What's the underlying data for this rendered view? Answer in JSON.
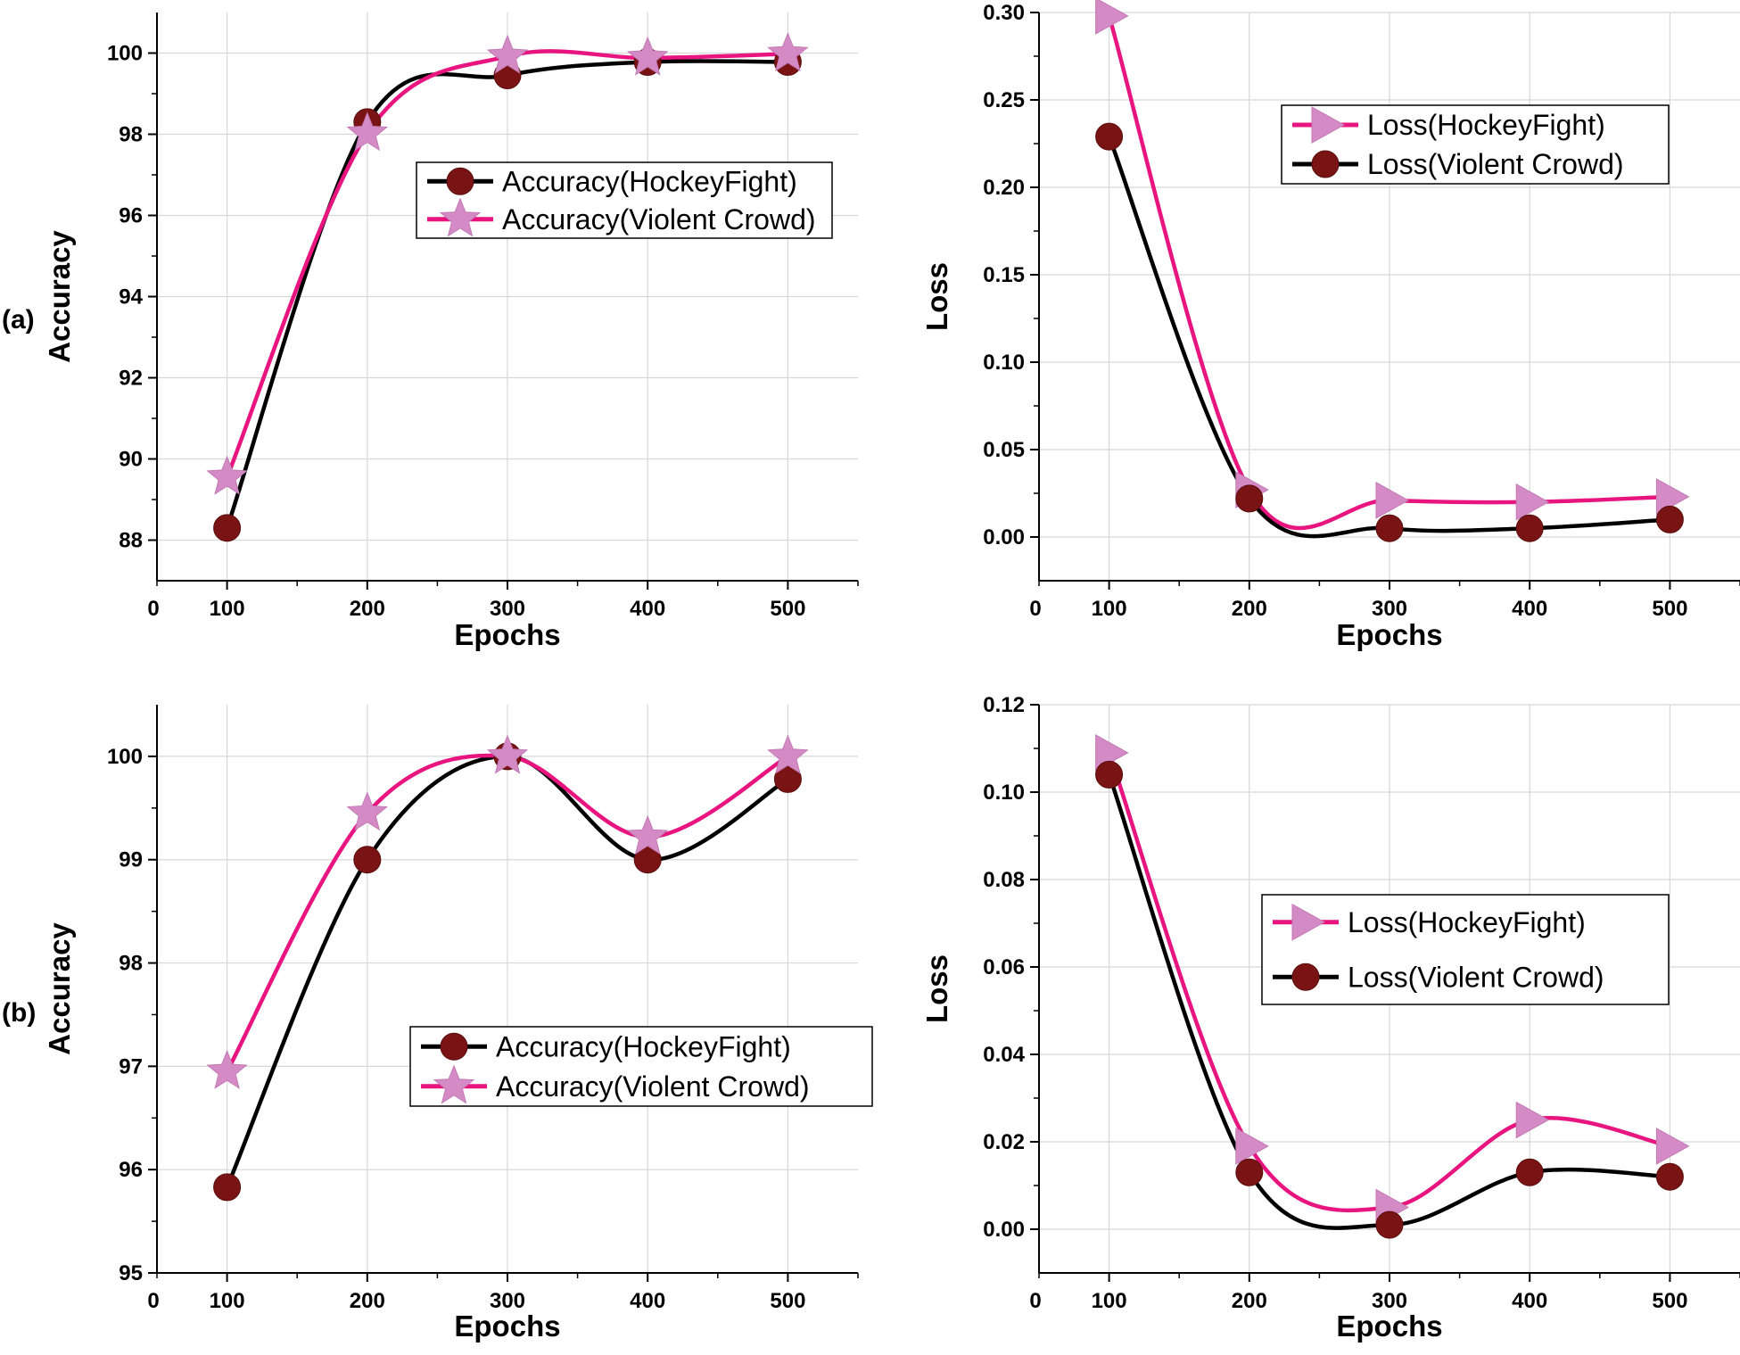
{
  "row_labels": [
    "(a)",
    "(b)"
  ],
  "colors": {
    "black_series": "#000000",
    "pink_series": "#e8147f",
    "marker_dark": "#7a1414",
    "marker_pink": "#d48ac4"
  },
  "chart_data": [
    {
      "id": "a-accuracy",
      "type": "line",
      "row": "(a)",
      "xlabel": "Epochs",
      "ylabel": "Accuracy",
      "x_ticks": [
        100,
        200,
        300,
        400,
        500
      ],
      "x_origin_label": "0",
      "xlim": [
        50,
        550
      ],
      "ylim": [
        87,
        101
      ],
      "y_ticks": [
        88,
        90,
        92,
        94,
        96,
        98,
        100
      ],
      "y_tick_labels": [
        "88",
        "90",
        "92",
        "94",
        "96",
        "98",
        "100"
      ],
      "legend_position": "upper-middle",
      "series": [
        {
          "name": "Accuracy(HockeyFight)",
          "color": "#000000",
          "marker": "circle",
          "x": [
            100,
            200,
            300,
            400,
            500
          ],
          "y": [
            88.3,
            98.3,
            99.45,
            99.78,
            99.78
          ]
        },
        {
          "name": "Accuracy(Violent Crowd)",
          "color": "#e8147f",
          "marker": "star",
          "x": [
            100,
            200,
            300,
            400,
            500
          ],
          "y": [
            89.55,
            98.02,
            99.92,
            99.88,
            99.98
          ]
        }
      ]
    },
    {
      "id": "a-loss",
      "type": "line",
      "row": "(a)",
      "xlabel": "Epochs",
      "ylabel": "Loss",
      "x_ticks": [
        100,
        200,
        300,
        400,
        500
      ],
      "x_origin_label": "0",
      "xlim": [
        50,
        550
      ],
      "ylim": [
        -0.025,
        0.3
      ],
      "y_ticks": [
        0.0,
        0.05,
        0.1,
        0.15,
        0.2,
        0.25,
        0.3
      ],
      "y_tick_labels": [
        "0.00",
        "0.05",
        "0.10",
        "0.15",
        "0.20",
        "0.25",
        "0.30"
      ],
      "legend_position": "top-right",
      "series": [
        {
          "name": "Loss(HockeyFight)",
          "color": "#e8147f",
          "marker": "triangle-right",
          "x": [
            100,
            200,
            300,
            400,
            500
          ],
          "y": [
            0.298,
            0.027,
            0.021,
            0.02,
            0.023
          ]
        },
        {
          "name": "Loss(Violent Crowd)",
          "color": "#000000",
          "marker": "circle",
          "x": [
            100,
            200,
            300,
            400,
            500
          ],
          "y": [
            0.229,
            0.022,
            0.005,
            0.005,
            0.01
          ]
        }
      ]
    },
    {
      "id": "b-accuracy",
      "type": "line",
      "row": "(b)",
      "xlabel": "Epochs",
      "ylabel": "Accuracy",
      "x_ticks": [
        100,
        200,
        300,
        400,
        500
      ],
      "x_origin_label": "0",
      "xlim": [
        50,
        550
      ],
      "ylim": [
        95,
        100.5
      ],
      "y_ticks": [
        95,
        96,
        97,
        98,
        99,
        100
      ],
      "y_tick_labels": [
        "95",
        "96",
        "97",
        "98",
        "99",
        "100"
      ],
      "legend_position": "lower-right",
      "series": [
        {
          "name": "Accuracy(HockeyFight)",
          "color": "#000000",
          "marker": "circle",
          "x": [
            100,
            200,
            300,
            400,
            500
          ],
          "y": [
            95.83,
            99.0,
            100.0,
            99.0,
            99.78
          ]
        },
        {
          "name": "Accuracy(Violent Crowd)",
          "color": "#e8147f",
          "marker": "star",
          "x": [
            100,
            200,
            300,
            400,
            500
          ],
          "y": [
            96.95,
            99.45,
            100.0,
            99.22,
            100.0
          ]
        }
      ]
    },
    {
      "id": "b-loss",
      "type": "line",
      "row": "(b)",
      "xlabel": "Epochs",
      "ylabel": "Loss",
      "x_ticks": [
        100,
        200,
        300,
        400,
        500
      ],
      "x_origin_label": "0",
      "xlim": [
        50,
        550
      ],
      "ylim": [
        -0.01,
        0.12
      ],
      "y_ticks": [
        0.0,
        0.02,
        0.04,
        0.06,
        0.08,
        0.1,
        0.12
      ],
      "y_tick_labels": [
        "0.00",
        "0.02",
        "0.04",
        "0.06",
        "0.08",
        "0.10",
        "0.12"
      ],
      "legend_position": "middle-right",
      "series": [
        {
          "name": "Loss(HockeyFight)",
          "color": "#e8147f",
          "marker": "triangle-right",
          "x": [
            100,
            200,
            300,
            400,
            500
          ],
          "y": [
            0.109,
            0.019,
            0.005,
            0.025,
            0.019
          ]
        },
        {
          "name": "Loss(Violent Crowd)",
          "color": "#000000",
          "marker": "circle",
          "x": [
            100,
            200,
            300,
            400,
            500
          ],
          "y": [
            0.104,
            0.013,
            0.001,
            0.013,
            0.012
          ]
        }
      ]
    }
  ]
}
